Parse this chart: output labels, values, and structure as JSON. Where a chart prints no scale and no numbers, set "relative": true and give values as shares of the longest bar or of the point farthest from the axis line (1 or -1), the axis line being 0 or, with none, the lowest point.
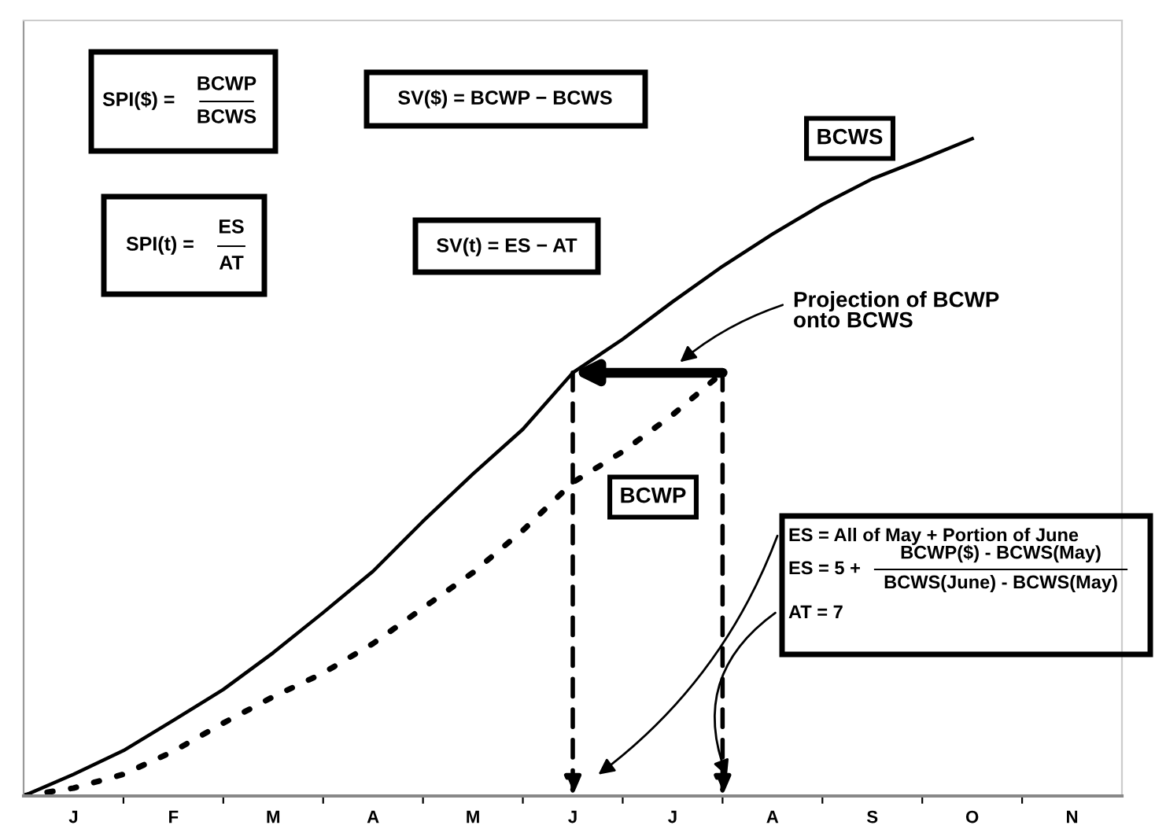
{
  "chart_data": {
    "type": "line",
    "relative": true,
    "grid": false,
    "legend": false,
    "categories": [
      null,
      "J",
      null,
      "F",
      null,
      "M",
      null,
      "A",
      null,
      "M",
      null,
      "J",
      null,
      "J",
      null,
      "A",
      null,
      "S",
      null,
      "O",
      null,
      "N",
      null
    ],
    "series": [
      {
        "name": "BCWS",
        "color": "#000000",
        "line_style": "solid",
        "values": [
          0,
          0.033,
          0.069,
          0.115,
          0.162,
          0.218,
          0.279,
          0.342,
          0.418,
          0.49,
          0.558,
          0.644,
          0.695,
          0.752,
          0.806,
          0.855,
          0.9,
          0.939,
          0.969,
          1.0,
          null,
          null,
          null
        ]
      },
      {
        "name": "BCWP",
        "color": "#000000",
        "line_style": "dotted",
        "values": [
          0,
          0.012,
          0.033,
          0.068,
          0.111,
          0.151,
          0.187,
          0.232,
          0.286,
          0.34,
          0.404,
          0.477,
          0.524,
          0.58,
          0.644,
          null,
          null,
          null,
          null,
          null,
          null,
          null,
          null
        ]
      }
    ],
    "annotations": [
      "SPI($) =",
      "BCWP",
      "BCWS",
      "SV($) = BCWP − BCWS",
      "SPI(t) =",
      "ES",
      "AT",
      "SV(t) = ES − AT",
      "Projection of BCWP\nonto BCWS",
      "ES = All of May + Portion of June",
      "ES = 5 +",
      "BCWP($) - BCWS(May)",
      "BCWS(June) - BCWS(May)",
      "AT = 7"
    ]
  }
}
